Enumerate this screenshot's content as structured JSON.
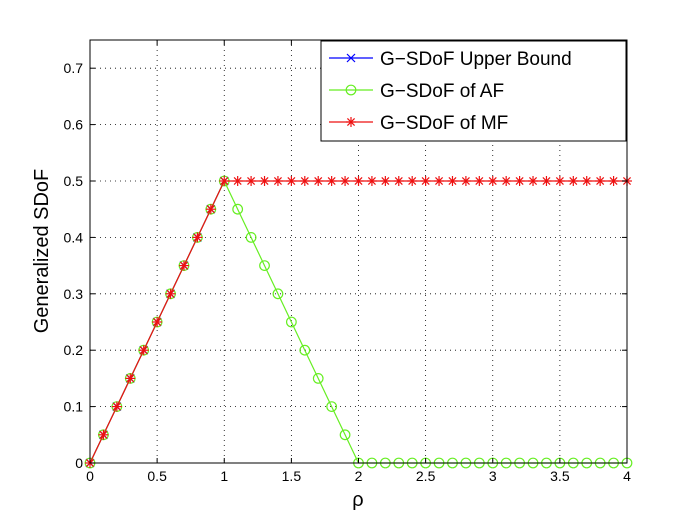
{
  "chart_data": {
    "type": "line",
    "title": "",
    "xlabel": "ρ",
    "ylabel": "Generalized SDoF",
    "xlim": [
      0,
      4
    ],
    "ylim": [
      0,
      0.75
    ],
    "xticks": [
      0,
      0.5,
      1,
      1.5,
      2,
      2.5,
      3,
      3.5,
      4
    ],
    "xtick_labels": [
      "0",
      "0.5",
      "1",
      "1.5",
      "2",
      "2.5",
      "3",
      "3.5",
      "4"
    ],
    "yticks": [
      0,
      0.1,
      0.2,
      0.3,
      0.4,
      0.5,
      0.6,
      0.7
    ],
    "ytick_labels": [
      "0",
      "0.1",
      "0.2",
      "0.3",
      "0.4",
      "0.5",
      "0.6",
      "0.7"
    ],
    "grid": true,
    "legend_position": "top-right",
    "series": [
      {
        "name": "G−SDoF Upper Bound",
        "color": "#0000ff",
        "marker": "x",
        "x": [
          0,
          0.1,
          0.2,
          0.3,
          0.4,
          0.5,
          0.6,
          0.7,
          0.8,
          0.9,
          1.0
        ],
        "y": [
          0,
          0.05,
          0.1,
          0.15,
          0.2,
          0.25,
          0.3,
          0.35,
          0.4,
          0.45,
          0.5
        ]
      },
      {
        "name": "G−SDoF of AF",
        "color": "#66ee22",
        "marker": "o",
        "x": [
          0,
          0.1,
          0.2,
          0.3,
          0.4,
          0.5,
          0.6,
          0.7,
          0.8,
          0.9,
          1.0,
          1.1,
          1.2,
          1.3,
          1.4,
          1.5,
          1.6,
          1.7,
          1.8,
          1.9,
          2.0,
          2.1,
          2.2,
          2.3,
          2.4,
          2.5,
          2.6,
          2.7,
          2.8,
          2.9,
          3.0,
          3.1,
          3.2,
          3.3,
          3.4,
          3.5,
          3.6,
          3.7,
          3.8,
          3.9,
          4.0
        ],
        "y": [
          0,
          0.05,
          0.1,
          0.15,
          0.2,
          0.25,
          0.3,
          0.35,
          0.4,
          0.45,
          0.5,
          0.45,
          0.4,
          0.35,
          0.3,
          0.25,
          0.2,
          0.15,
          0.1,
          0.05,
          0,
          0,
          0,
          0,
          0,
          0,
          0,
          0,
          0,
          0,
          0,
          0,
          0,
          0,
          0,
          0,
          0,
          0,
          0,
          0,
          0
        ]
      },
      {
        "name": "G−SDoF of MF",
        "color": "#ee1111",
        "marker": "*",
        "x": [
          0,
          0.1,
          0.2,
          0.3,
          0.4,
          0.5,
          0.6,
          0.7,
          0.8,
          0.9,
          1.0,
          1.1,
          1.2,
          1.3,
          1.4,
          1.5,
          1.6,
          1.7,
          1.8,
          1.9,
          2.0,
          2.1,
          2.2,
          2.3,
          2.4,
          2.5,
          2.6,
          2.7,
          2.8,
          2.9,
          3.0,
          3.1,
          3.2,
          3.3,
          3.4,
          3.5,
          3.6,
          3.7,
          3.8,
          3.9,
          4.0
        ],
        "y": [
          0,
          0.05,
          0.1,
          0.15,
          0.2,
          0.25,
          0.3,
          0.35,
          0.4,
          0.45,
          0.5,
          0.5,
          0.5,
          0.5,
          0.5,
          0.5,
          0.5,
          0.5,
          0.5,
          0.5,
          0.5,
          0.5,
          0.5,
          0.5,
          0.5,
          0.5,
          0.5,
          0.5,
          0.5,
          0.5,
          0.5,
          0.5,
          0.5,
          0.5,
          0.5,
          0.5,
          0.5,
          0.5,
          0.5,
          0.5,
          0.5
        ]
      }
    ]
  }
}
